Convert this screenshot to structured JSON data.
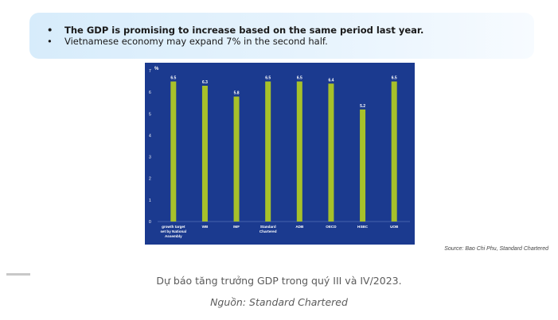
{
  "highlights": [
    "The GDP is promising to increase based on the same period last year.",
    "Vietnamese economy may expand 7% in the second half."
  ],
  "bullet_char": "•",
  "chart_data": {
    "type": "bar",
    "title": "",
    "ylabel": "%",
    "xlabel": "",
    "ylim": [
      0,
      7
    ],
    "yticks": [
      "0",
      "1",
      "2",
      "3",
      "4",
      "5",
      "6",
      "7"
    ],
    "categories": [
      [
        "growth target",
        "set by National",
        "Assembly"
      ],
      [
        "WB"
      ],
      [
        "IMF"
      ],
      [
        "Standard",
        "Chartered"
      ],
      [
        "ADB"
      ],
      [
        "OECD"
      ],
      [
        "HSBC"
      ],
      [
        "UOB"
      ]
    ],
    "values": [
      6.5,
      6.3,
      5.8,
      6.5,
      6.5,
      6.4,
      5.2,
      6.5
    ],
    "value_labels": [
      "6.5",
      "6.3",
      "5.8",
      "6.5",
      "6.5",
      "6.4",
      "5.2",
      "6.5"
    ],
    "grid": false,
    "bar_color": "#a7c12a",
    "background_color": "#1b3a8f",
    "text_color": "#ffffff"
  },
  "source_note": "Source: Bao Chi Phu, Standard Chartered",
  "caption": "Dự báo tăng trưởng GDP trong quý III và IV/2023.",
  "credit": "Nguồn: Standard Chartered"
}
